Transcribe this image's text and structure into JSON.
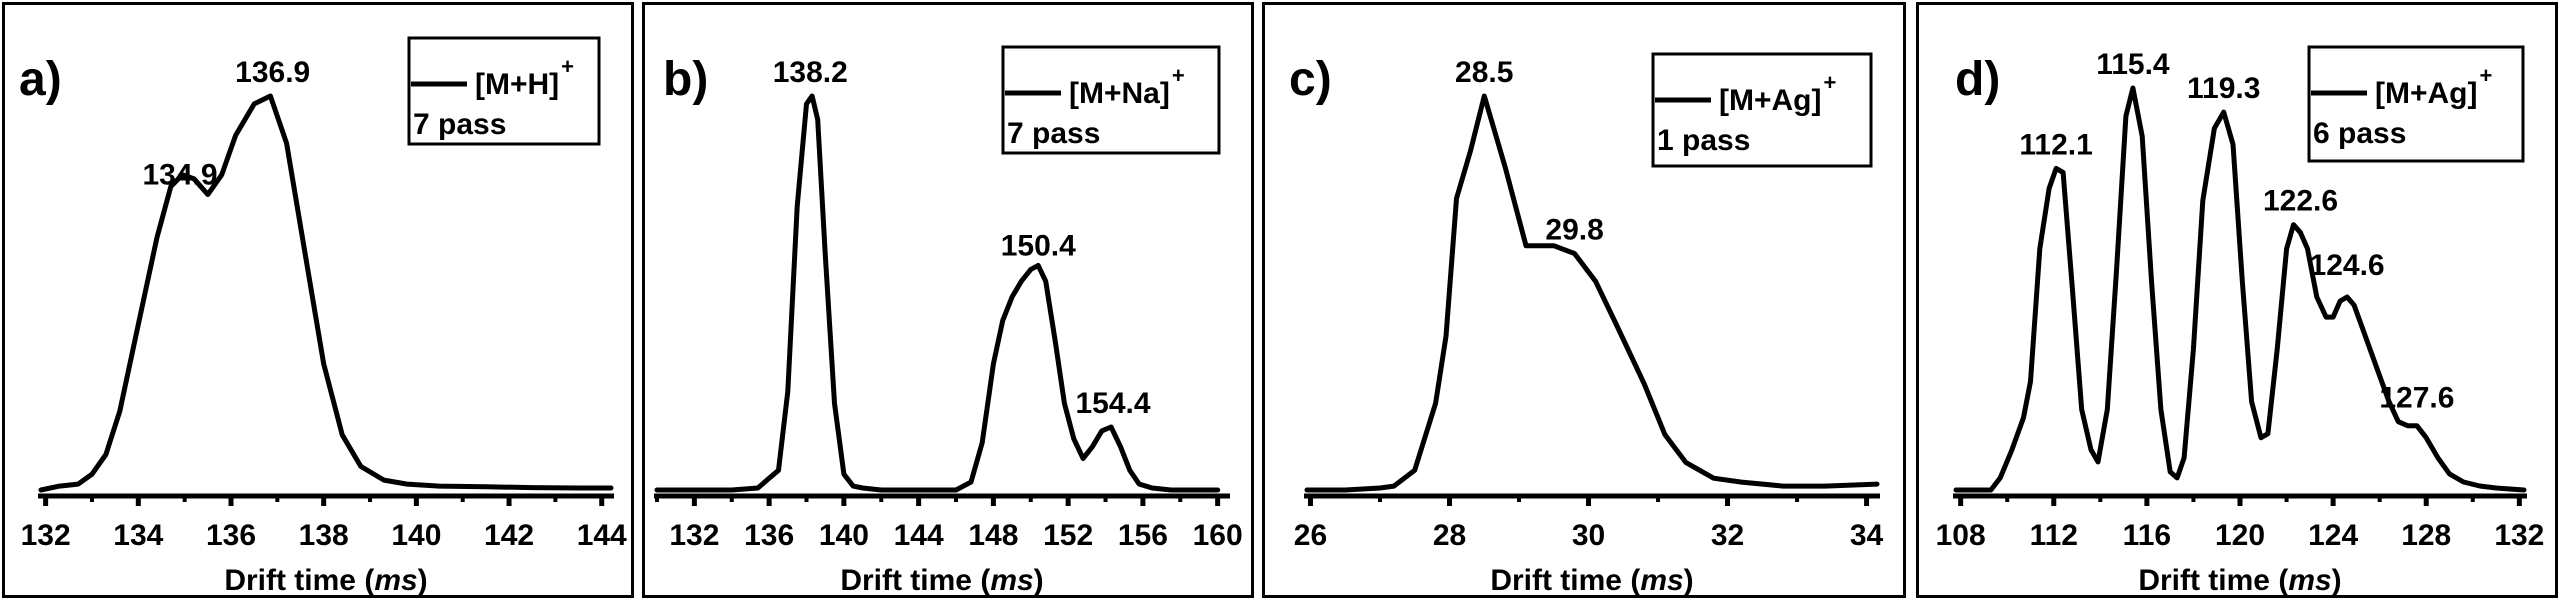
{
  "figure": {
    "panels": [
      {
        "letter": "a)",
        "legend": {
          "species": "[M+H]",
          "charge": "+",
          "passes": "7 pass"
        },
        "xlabel_main": "Drift time (",
        "xlabel_unit": "ms",
        "xlabel_end": ")"
      },
      {
        "letter": "b)",
        "legend": {
          "species": "[M+Na]",
          "charge": "+",
          "passes": "7 pass"
        },
        "xlabel_main": "Drift time (",
        "xlabel_unit": "ms",
        "xlabel_end": ")"
      },
      {
        "letter": "c)",
        "legend": {
          "species": "[M+Ag]",
          "charge": "+",
          "passes": "1 pass"
        },
        "xlabel_main": "Drift time (",
        "xlabel_unit": "ms",
        "xlabel_end": ")"
      },
      {
        "letter": "d)",
        "legend": {
          "species": "[M+Ag]",
          "charge": "+",
          "passes": "6 pass"
        },
        "xlabel_main": "Drift time (",
        "xlabel_unit": "ms",
        "xlabel_end": ")"
      }
    ]
  },
  "chart_data": [
    {
      "type": "line",
      "title": "a)",
      "xlabel": "Drift time (ms)",
      "ylabel": "",
      "legend": "[M+H]+ 7 pass",
      "xlim": [
        131.9,
        144.2
      ],
      "xticks": [
        132,
        134,
        136,
        138,
        140,
        142,
        144
      ],
      "minor_ticks": [
        133,
        135,
        137,
        139,
        141,
        143
      ],
      "annotations": [
        {
          "text": "134.9",
          "x": 134.9,
          "y": 0.74
        },
        {
          "text": "136.9",
          "x": 136.9,
          "y": 1.0
        }
      ],
      "series": [
        {
          "name": "[M+H]+ 7 pass",
          "x": [
            131.9,
            132.3,
            132.7,
            133.0,
            133.3,
            133.6,
            134.0,
            134.4,
            134.7,
            134.95,
            135.2,
            135.5,
            135.8,
            136.1,
            136.5,
            136.85,
            137.2,
            137.6,
            138.0,
            138.4,
            138.8,
            139.3,
            139.8,
            140.5,
            141.5,
            142.5,
            143.5,
            144.2
          ],
          "y": [
            0.0,
            0.01,
            0.015,
            0.04,
            0.09,
            0.2,
            0.42,
            0.64,
            0.77,
            0.8,
            0.79,
            0.75,
            0.8,
            0.9,
            0.98,
            1.0,
            0.88,
            0.6,
            0.32,
            0.14,
            0.06,
            0.025,
            0.015,
            0.01,
            0.008,
            0.006,
            0.005,
            0.005
          ]
        }
      ]
    },
    {
      "type": "line",
      "title": "b)",
      "xlabel": "Drift time (ms)",
      "ylabel": "",
      "legend": "[M+Na]+ 7 pass",
      "xlim": [
        130,
        160.5
      ],
      "xticks": [
        132,
        136,
        140,
        144,
        148,
        152,
        156,
        160
      ],
      "minor_ticks": [
        130,
        134,
        138,
        142,
        146,
        150,
        154,
        158
      ],
      "annotations": [
        {
          "text": "138.2",
          "x": 138.2,
          "y": 1.0
        },
        {
          "text": "150.4",
          "x": 150.4,
          "y": 0.56
        },
        {
          "text": "154.4",
          "x": 154.4,
          "y": 0.16
        }
      ],
      "series": [
        {
          "name": "[M+Na]+ 7 pass",
          "x": [
            130.0,
            134.0,
            135.4,
            136.0,
            136.5,
            137.0,
            137.5,
            138.0,
            138.3,
            138.6,
            139.0,
            139.5,
            140.0,
            140.5,
            141.0,
            142.0,
            146.0,
            146.8,
            147.4,
            148.0,
            148.5,
            149.0,
            149.5,
            150.0,
            150.4,
            150.8,
            151.3,
            151.8,
            152.3,
            152.8,
            153.3,
            153.8,
            154.3,
            154.8,
            155.3,
            155.8,
            156.5,
            157.5,
            160.0
          ],
          "y": [
            0.0,
            0.0,
            0.005,
            0.03,
            0.05,
            0.25,
            0.72,
            0.98,
            1.0,
            0.94,
            0.6,
            0.22,
            0.04,
            0.01,
            0.005,
            0.0,
            0.0,
            0.02,
            0.12,
            0.32,
            0.43,
            0.49,
            0.53,
            0.56,
            0.57,
            0.53,
            0.38,
            0.22,
            0.13,
            0.08,
            0.11,
            0.15,
            0.16,
            0.11,
            0.05,
            0.015,
            0.005,
            0.0,
            0.0
          ]
        }
      ]
    },
    {
      "type": "line",
      "title": "c)",
      "xlabel": "Drift time (ms)",
      "ylabel": "",
      "legend": "[M+Ag]+ 1 pass",
      "xlim": [
        25.95,
        34.15
      ],
      "xticks": [
        26,
        28,
        30,
        32,
        34
      ],
      "minor_ticks": [
        27,
        29,
        31,
        33
      ],
      "annotations": [
        {
          "text": "28.5",
          "x": 28.5,
          "y": 1.0
        },
        {
          "text": "29.8",
          "x": 29.8,
          "y": 0.6
        }
      ],
      "series": [
        {
          "name": "[M+Ag]+ 1 pass",
          "x": [
            25.95,
            26.5,
            27.0,
            27.2,
            27.5,
            27.8,
            27.95,
            28.1,
            28.3,
            28.5,
            28.8,
            29.1,
            29.3,
            29.5,
            29.8,
            30.1,
            30.4,
            30.8,
            31.1,
            31.4,
            31.8,
            32.2,
            32.8,
            33.4,
            34.15
          ],
          "y": [
            0.0,
            0.0,
            0.005,
            0.01,
            0.05,
            0.22,
            0.39,
            0.74,
            0.86,
            1.0,
            0.82,
            0.62,
            0.62,
            0.62,
            0.6,
            0.53,
            0.42,
            0.27,
            0.14,
            0.07,
            0.03,
            0.02,
            0.01,
            0.01,
            0.015
          ]
        }
      ]
    },
    {
      "type": "line",
      "title": "d)",
      "xlabel": "Drift time (ms)",
      "ylabel": "",
      "legend": "[M+Ag]+ 6 pass",
      "xlim": [
        107.8,
        132.2
      ],
      "xticks": [
        108,
        112,
        116,
        120,
        124,
        128,
        132
      ],
      "minor_ticks": [
        110,
        114,
        118,
        122,
        126,
        130
      ],
      "annotations": [
        {
          "text": "112.1",
          "x": 112.1,
          "y": 0.8
        },
        {
          "text": "115.4",
          "x": 115.4,
          "y": 1.0
        },
        {
          "text": "119.3",
          "x": 119.3,
          "y": 0.94
        },
        {
          "text": "122.6",
          "x": 122.6,
          "y": 0.66
        },
        {
          "text": "124.6",
          "x": 124.6,
          "y": 0.5
        },
        {
          "text": "127.6",
          "x": 127.6,
          "y": 0.17
        }
      ],
      "series": [
        {
          "name": "[M+Ag]+ 6 pass",
          "x": [
            107.8,
            109.3,
            109.7,
            110.2,
            110.7,
            111.0,
            111.4,
            111.8,
            112.1,
            112.4,
            112.8,
            113.2,
            113.6,
            113.9,
            114.3,
            114.7,
            115.1,
            115.4,
            115.8,
            116.2,
            116.6,
            117.0,
            117.3,
            117.6,
            118.0,
            118.4,
            118.9,
            119.3,
            119.7,
            120.1,
            120.5,
            120.9,
            121.2,
            121.6,
            122.0,
            122.3,
            122.6,
            122.9,
            123.3,
            123.7,
            124.0,
            124.3,
            124.6,
            124.9,
            125.4,
            125.9,
            126.4,
            126.8,
            127.2,
            127.6,
            128.0,
            128.5,
            129.0,
            129.6,
            130.3,
            131.0,
            132.2
          ],
          "y": [
            0.0,
            0.0,
            0.03,
            0.1,
            0.18,
            0.27,
            0.6,
            0.75,
            0.8,
            0.79,
            0.5,
            0.2,
            0.1,
            0.07,
            0.2,
            0.55,
            0.93,
            1.0,
            0.88,
            0.52,
            0.2,
            0.045,
            0.03,
            0.08,
            0.35,
            0.72,
            0.9,
            0.94,
            0.86,
            0.52,
            0.22,
            0.13,
            0.14,
            0.35,
            0.6,
            0.66,
            0.64,
            0.6,
            0.48,
            0.43,
            0.43,
            0.47,
            0.48,
            0.46,
            0.38,
            0.3,
            0.22,
            0.17,
            0.16,
            0.16,
            0.13,
            0.08,
            0.04,
            0.02,
            0.01,
            0.005,
            0.0
          ]
        }
      ]
    }
  ]
}
